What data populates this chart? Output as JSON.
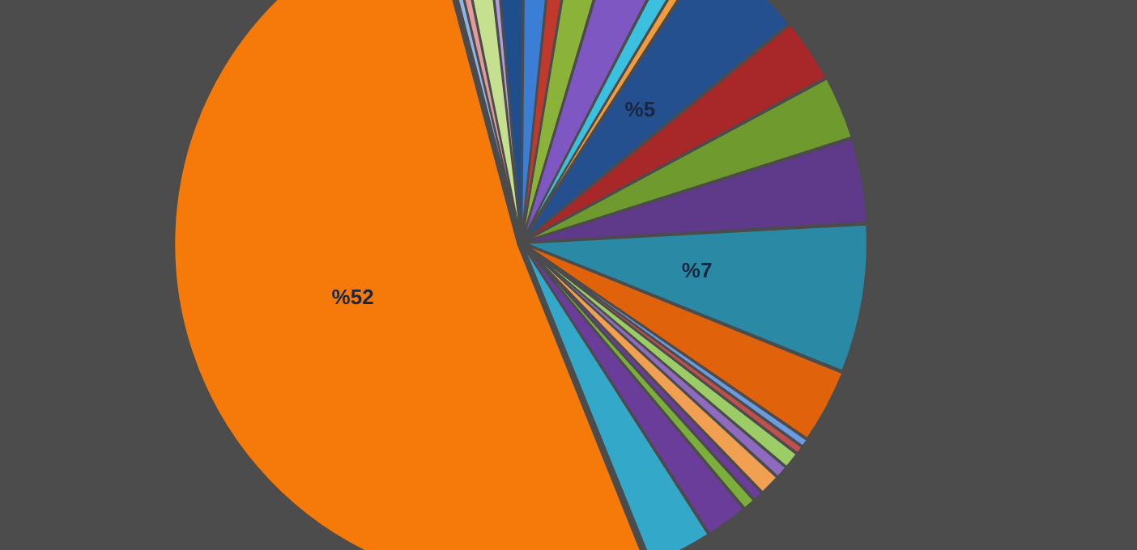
{
  "chart_data": {
    "type": "pie",
    "categories": [
      null,
      null,
      null,
      null,
      null,
      null,
      null,
      null,
      null,
      null,
      null,
      null,
      null,
      null,
      null,
      null,
      null,
      null,
      null,
      null,
      null,
      null,
      null,
      null,
      null,
      null,
      null
    ],
    "values": [
      1.5,
      1.5,
      1,
      2,
      3,
      1,
      0.5,
      5,
      3,
      3,
      4,
      7,
      3.5,
      0.4,
      0.4,
      0.8,
      0.6,
      1,
      0.5,
      0.6,
      2,
      3,
      52,
      0.4,
      0.5,
      1.4,
      0.4
    ],
    "colors": [
      "#1f4e8c",
      "#3a7fd5",
      "#c0392b",
      "#8bb33a",
      "#7e57c2",
      "#3cc0e0",
      "#f39c3b",
      "#24508f",
      "#a8282a",
      "#6f9a2e",
      "#5f3a8a",
      "#2a8aa6",
      "#e0630c",
      "#6b9be0",
      "#c05050",
      "#9ccc65",
      "#8e6bbf",
      "#f0a050",
      "#6a3d9a",
      "#7cae3c",
      "#6a3d9a",
      "#33a8c8",
      "#f57a0a",
      "#8fb4e8",
      "#e39a9a",
      "#c5e08f",
      "#b39ddb"
    ],
    "value_labels": [
      null,
      null,
      null,
      null,
      null,
      null,
      null,
      "%5",
      null,
      null,
      null,
      "%7",
      null,
      null,
      null,
      null,
      null,
      null,
      null,
      null,
      null,
      null,
      "%52",
      null,
      null,
      null,
      null
    ]
  }
}
